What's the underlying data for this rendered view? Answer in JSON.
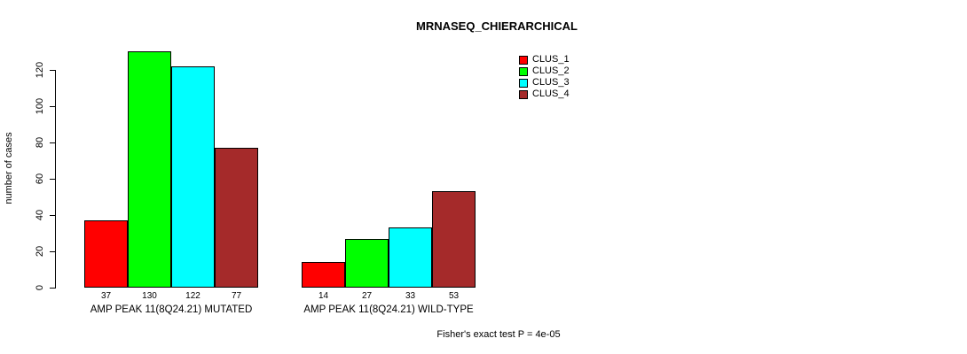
{
  "title": "MRNASEQ_CHIERARCHICAL",
  "footer": "Fisher's exact test P = 4e-05",
  "chart_data": {
    "type": "bar",
    "title": "MRNASEQ_CHIERARCHICAL",
    "xlabel": "",
    "ylabel": "number of cases",
    "ylim": [
      0,
      130
    ],
    "y_ticks": [
      0,
      20,
      40,
      60,
      80,
      100,
      120
    ],
    "grid": false,
    "legend_position": "top-right",
    "series": [
      {
        "name": "CLUS_1",
        "color": "#FF0000"
      },
      {
        "name": "CLUS_2",
        "color": "#00FF00"
      },
      {
        "name": "CLUS_3",
        "color": "#00FFFF"
      },
      {
        "name": "CLUS_4",
        "color": "#A52A2A"
      }
    ],
    "groups": [
      {
        "label": "AMP PEAK 11(8Q24.21) MUTATED",
        "values": [
          37,
          130,
          122,
          77
        ]
      },
      {
        "label": "AMP PEAK 11(8Q24.21) WILD-TYPE",
        "values": [
          14,
          27,
          33,
          53
        ]
      }
    ],
    "annotation": "Fisher's exact test P = 4e-05"
  }
}
